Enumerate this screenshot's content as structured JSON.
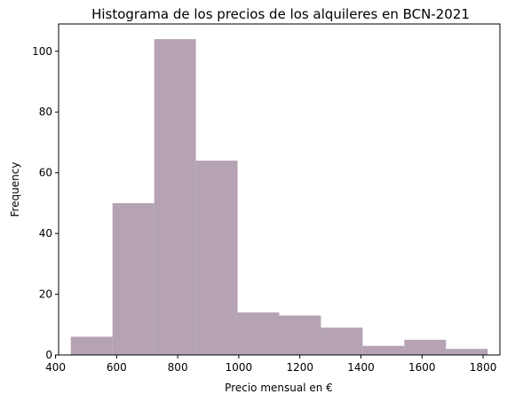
{
  "chart_data": {
    "type": "bar",
    "title": "Histograma de los precios de los alquileres en BCN-2021",
    "xlabel": "Precio mensual en €",
    "ylabel": "Frequency",
    "xlim": [
      410,
      1855
    ],
    "ylim": [
      0,
      109
    ],
    "xticks": [
      400,
      600,
      800,
      1000,
      1200,
      1400,
      1600,
      1800
    ],
    "yticks": [
      0,
      20,
      40,
      60,
      80,
      100
    ],
    "bin_edges": [
      450,
      586.5,
      723,
      859.5,
      996,
      1132.5,
      1269,
      1405.5,
      1542,
      1678.5,
      1815
    ],
    "values": [
      6,
      50,
      104,
      64,
      14,
      13,
      9,
      3,
      5,
      2
    ],
    "bar_color": "#b5a3b3",
    "grid": false
  }
}
